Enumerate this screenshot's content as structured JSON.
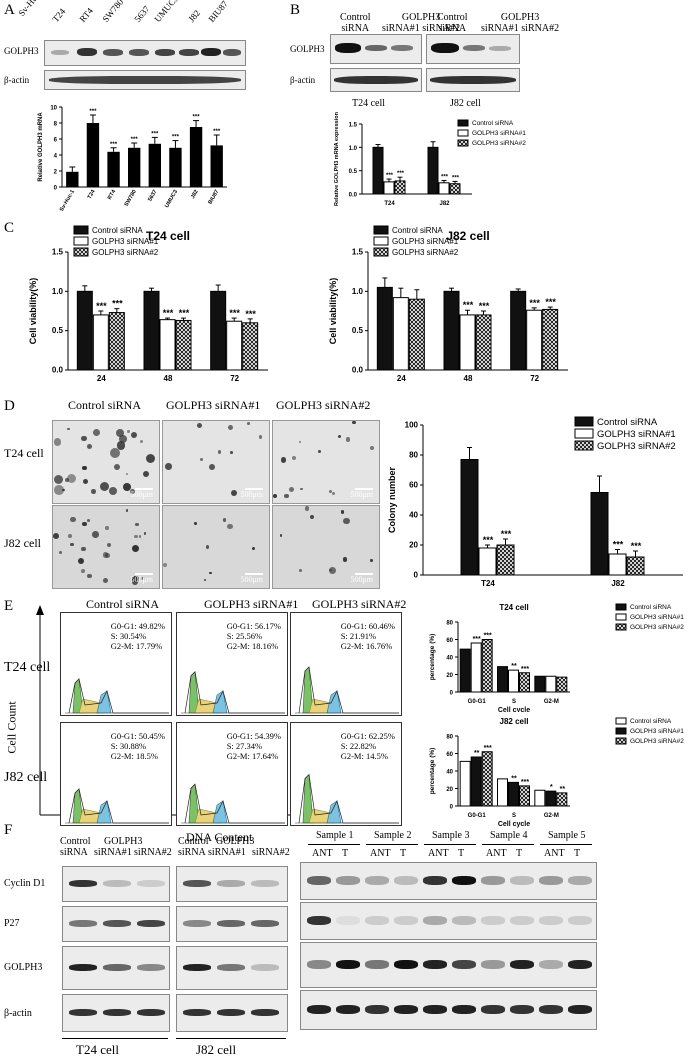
{
  "panels": {
    "A": "A",
    "B": "B",
    "C": "C",
    "D": "D",
    "E": "E",
    "F": "F"
  },
  "A": {
    "lanes": [
      "Sv-Huc-1",
      "T24",
      "RT4",
      "SW780",
      "5637",
      "UMUC3",
      "J82",
      "BIU87"
    ],
    "rows": [
      "GOLPH3",
      "β-actin"
    ]
  },
  "B": {
    "groups": [
      "T24 cell",
      "J82 cell"
    ],
    "lane_labels": [
      {
        "l1": "Control",
        "l2": "siRNA"
      },
      {
        "l1": "GOLPH3",
        "l2": "siRNA#1 siRNA#2"
      }
    ],
    "rows": [
      "GOLPH3",
      "β-actin"
    ]
  },
  "C": {
    "titles": [
      "T24 cell",
      "J82 cell"
    ]
  },
  "D": {
    "cols": [
      "Control siRNA",
      "GOLPH3 siRNA#1",
      "GOLPH3 siRNA#2"
    ],
    "rows": [
      "T24 cell",
      "J82 cell"
    ],
    "scale": "500μm"
  },
  "E": {
    "cols": [
      "Control siRNA",
      "GOLPH3 siRNA#1",
      "GOLPH3 siRNA#2"
    ],
    "rows": [
      "T24 cell",
      "J82 cell"
    ],
    "yaxis": "Cell Count",
    "xaxis": "DNA Content",
    "stats": [
      [
        [
          "G0-G1: 49.82%",
          "S: 30.54%",
          "G2-M: 17.79%"
        ],
        [
          "G0-G1: 56.17%",
          "S: 25.56%",
          "G2-M: 18.16%"
        ],
        [
          "G0-G1: 60.46%",
          "S: 21.91%",
          "G2-M: 16.76%"
        ]
      ],
      [
        [
          "G0-G1: 50.45%",
          "S: 30.88%",
          "G2-M: 18.5%"
        ],
        [
          "G0-G1: 54.39%",
          "S: 27.34%",
          "G2-M: 17.64%"
        ],
        [
          "G0-G1: 62.25%",
          "S: 22.82%",
          "G2-M: 14.5%"
        ]
      ]
    ]
  },
  "F": {
    "lane_top": [
      "Control",
      "GOLPH3"
    ],
    "lane_bottom": [
      "siRNA",
      "siRNA#1",
      "siRNA#2"
    ],
    "rows": [
      "Cyclin D1",
      "P27",
      "GOLPH3",
      "β-actin"
    ],
    "groups": [
      "T24 cell",
      "J82 cell"
    ],
    "samples": [
      "Sample 1",
      "Sample 2",
      "Sample 3",
      "Sample 4",
      "Sample 5"
    ],
    "sub": [
      "ANT",
      "T"
    ]
  },
  "chart_data": [
    {
      "id": "A",
      "type": "bar",
      "categories": [
        "Sv-Huc-1",
        "T24",
        "RT4",
        "SW780",
        "5637",
        "UMUC3",
        "J82",
        "BIU87"
      ],
      "values": [
        1.9,
        8.0,
        4.4,
        4.9,
        5.4,
        4.9,
        7.5,
        5.2
      ],
      "errors": [
        0.6,
        1.0,
        0.5,
        0.6,
        0.8,
        0.9,
        0.8,
        1.3
      ],
      "ylabel": "Relative GOLPH3 mRNA",
      "ylim": [
        0,
        10
      ],
      "yticks": [
        "0",
        "2",
        "4",
        "6",
        "8",
        "10"
      ],
      "stars": [
        "",
        "***",
        "***",
        "***",
        "***",
        "***",
        "***",
        "***"
      ]
    },
    {
      "id": "B",
      "type": "bar",
      "categories": [
        "T24",
        "J82"
      ],
      "ylabel": "Relative GOLPH3 mRNA expression",
      "ylim": [
        0,
        1.5
      ],
      "yticks": [
        "0.0",
        "0.5",
        "1.0",
        "1.5"
      ],
      "series": [
        {
          "name": "Control siRNA",
          "values": [
            1.0,
            1.0
          ],
          "errors": [
            0.06,
            0.12
          ]
        },
        {
          "name": "GOLPH3 siRNA#1",
          "values": [
            0.26,
            0.24
          ],
          "errors": [
            0.06,
            0.05
          ]
        },
        {
          "name": "GOLPH3 siRNA#2",
          "values": [
            0.28,
            0.22
          ],
          "errors": [
            0.08,
            0.05
          ]
        }
      ],
      "stars": [
        [
          "",
          "***",
          "***"
        ],
        [
          "",
          "***",
          "***"
        ]
      ]
    },
    {
      "id": "C1",
      "type": "bar",
      "title": "T24 cell",
      "categories": [
        "24",
        "48",
        "72"
      ],
      "ylabel": "Cell viability(%)",
      "ylim": [
        0,
        1.5
      ],
      "yticks": [
        "0.0",
        "0.5",
        "1.0",
        "1.5"
      ],
      "series": [
        {
          "name": "Control siRNA",
          "values": [
            1.0,
            1.0,
            1.0
          ],
          "errors": [
            0.07,
            0.04,
            0.08
          ]
        },
        {
          "name": "GOLPH3 siRNA#1",
          "values": [
            0.7,
            0.64,
            0.62
          ],
          "errors": [
            0.05,
            0.02,
            0.04
          ]
        },
        {
          "name": "GOLPH3 siRNA#2",
          "values": [
            0.73,
            0.63,
            0.6
          ],
          "errors": [
            0.05,
            0.03,
            0.05
          ]
        }
      ],
      "stars": [
        [
          "",
          "***",
          "***"
        ],
        [
          "",
          "***",
          "***"
        ],
        [
          "",
          "***",
          "***"
        ]
      ]
    },
    {
      "id": "C2",
      "type": "bar",
      "title": "J82 cell",
      "categories": [
        "24",
        "48",
        "72"
      ],
      "ylabel": "Cell viability(%)",
      "ylim": [
        0,
        1.5
      ],
      "yticks": [
        "0.0",
        "0.5",
        "1.0",
        "1.5"
      ],
      "series": [
        {
          "name": "Control siRNA",
          "values": [
            1.05,
            1.0,
            1.0
          ],
          "errors": [
            0.12,
            0.04,
            0.03
          ]
        },
        {
          "name": "GOLPH3 siRNA#1",
          "values": [
            0.92,
            0.7,
            0.76
          ],
          "errors": [
            0.12,
            0.06,
            0.03
          ]
        },
        {
          "name": "GOLPH3 siRNA#2",
          "values": [
            0.9,
            0.7,
            0.77
          ],
          "errors": [
            0.12,
            0.05,
            0.03
          ]
        }
      ],
      "stars": [
        [
          "",
          "",
          ""
        ],
        [
          "",
          "***",
          "***"
        ],
        [
          "",
          "***",
          "***"
        ]
      ]
    },
    {
      "id": "D",
      "type": "bar",
      "categories": [
        "T24",
        "J82"
      ],
      "ylabel": "Colony number",
      "ylim": [
        0,
        100
      ],
      "yticks": [
        "0",
        "20",
        "40",
        "60",
        "80",
        "100"
      ],
      "series": [
        {
          "name": "Control siRNA",
          "values": [
            77,
            55
          ],
          "errors": [
            8,
            11
          ]
        },
        {
          "name": "GOLPH3 siRNA#1",
          "values": [
            18,
            14
          ],
          "errors": [
            2,
            3
          ]
        },
        {
          "name": "GOLPH3 siRNA#2",
          "values": [
            20,
            12
          ],
          "errors": [
            4,
            4
          ]
        }
      ],
      "stars": [
        [
          "",
          "***",
          "***"
        ],
        [
          "",
          "***",
          "***"
        ]
      ]
    },
    {
      "id": "E1",
      "type": "bar",
      "title": "T24 cell",
      "categories": [
        "G0-G1",
        "S",
        "G2-M"
      ],
      "xlabel": "Cell cycle",
      "ylabel": "percentage (%)",
      "ylim": [
        0,
        80
      ],
      "yticks": [
        "0",
        "20",
        "40",
        "60",
        "80"
      ],
      "series": [
        {
          "name": "Control siRNA",
          "values": [
            49,
            29,
            18
          ]
        },
        {
          "name": "GOLPH3 siRNA#1",
          "values": [
            56,
            25,
            18
          ]
        },
        {
          "name": "GOLPH3 siRNA#2",
          "values": [
            60,
            22,
            17
          ]
        }
      ],
      "stars": [
        [
          "",
          "***",
          "***"
        ],
        [
          "",
          "**",
          "***"
        ],
        [
          "",
          "",
          ""
        ]
      ]
    },
    {
      "id": "E2",
      "type": "bar",
      "title": "J82 cell",
      "categories": [
        "G0-G1",
        "S",
        "G2-M"
      ],
      "xlabel": "Cell cycle",
      "ylabel": "percentage (%)",
      "ylim": [
        0,
        80
      ],
      "yticks": [
        "0",
        "20",
        "40",
        "60",
        "80"
      ],
      "series": [
        {
          "name": "Control siRNA",
          "values": [
            51,
            31,
            18
          ]
        },
        {
          "name": "GOLPH3 siRNA#1",
          "values": [
            56,
            27,
            17
          ]
        },
        {
          "name": "GOLPH3 siRNA#2",
          "values": [
            62,
            23,
            15
          ]
        }
      ],
      "stars": [
        [
          "",
          "**",
          "***"
        ],
        [
          "",
          "**",
          "***"
        ],
        [
          "",
          "*",
          "**"
        ]
      ]
    }
  ]
}
